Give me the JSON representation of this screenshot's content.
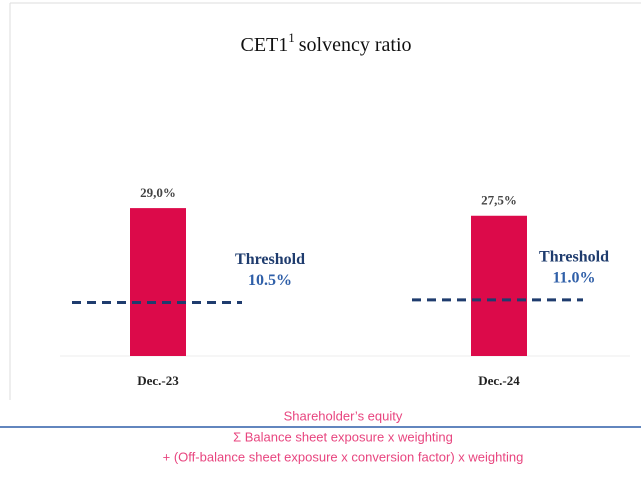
{
  "chart_data": {
    "type": "bar",
    "title": "CET1",
    "title_superscript": "1",
    "title_rest": "solvency ratio",
    "categories": [
      "Dec.-23",
      "Dec.-24"
    ],
    "values": [
      29.0,
      27.5
    ],
    "value_labels": [
      "29,0%",
      "27,5%"
    ],
    "color": "#dc0a4a",
    "thresholds": {
      "name": "Threshold",
      "values": [
        10.5,
        11.0
      ],
      "value_labels": [
        "10.5%",
        "11.0%"
      ],
      "color": "#1f3c6e"
    },
    "ylim": [
      0,
      40
    ],
    "footnote": [
      "Shareholder’s equity",
      "Σ Balance  sheet exposure x weighting",
      "+ (Off-balance sheet exposure x conversion factor) x weighting"
    ]
  }
}
